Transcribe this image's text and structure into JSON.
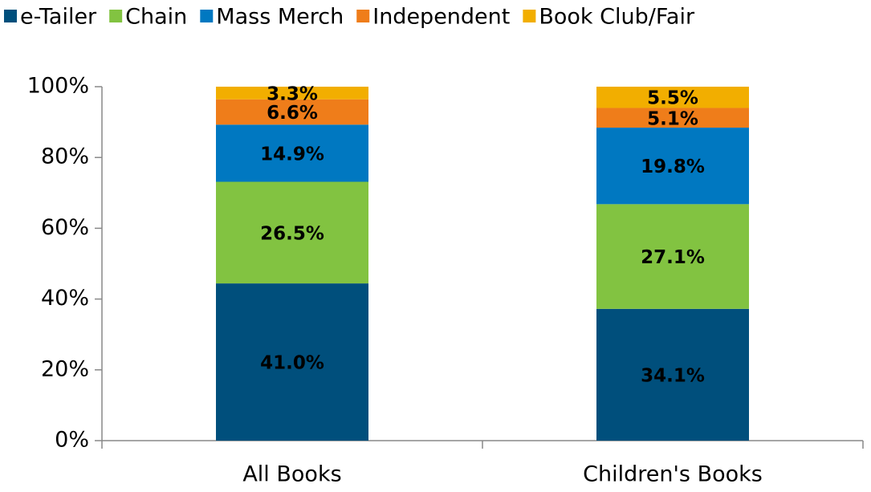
{
  "chart_data": {
    "type": "bar",
    "stacking": "percent",
    "categories": [
      "All Books",
      "Children's Books"
    ],
    "series": [
      {
        "name": "e-Tailer",
        "color": "#004f7c",
        "values": [
          41.0,
          34.1
        ],
        "value_labels": [
          "41.0%",
          "34.1%"
        ]
      },
      {
        "name": "Chain",
        "color": "#82c341",
        "values": [
          26.5,
          27.1
        ],
        "value_labels": [
          "26.5%",
          "27.1%"
        ]
      },
      {
        "name": "Mass Merch",
        "color": "#0078c1",
        "values": [
          14.9,
          19.8
        ],
        "value_labels": [
          "14.9%",
          "19.8%"
        ]
      },
      {
        "name": "Independent",
        "color": "#ef7d1a",
        "values": [
          6.6,
          5.1
        ],
        "value_labels": [
          "6.6%",
          "5.1%"
        ]
      },
      {
        "name": "Book Club/Fair",
        "color": "#f2ae00",
        "values": [
          3.3,
          5.5
        ],
        "value_labels": [
          "3.3%",
          "5.5%"
        ]
      }
    ],
    "ylim": [
      0,
      100
    ],
    "yticks": [
      {
        "value": 0,
        "label": "0%"
      },
      {
        "value": 20,
        "label": "20%"
      },
      {
        "value": 40,
        "label": "40%"
      },
      {
        "value": 60,
        "label": "60%"
      },
      {
        "value": 80,
        "label": "80%"
      },
      {
        "value": 100,
        "label": "100%"
      }
    ],
    "legend": "top",
    "grid": false
  }
}
